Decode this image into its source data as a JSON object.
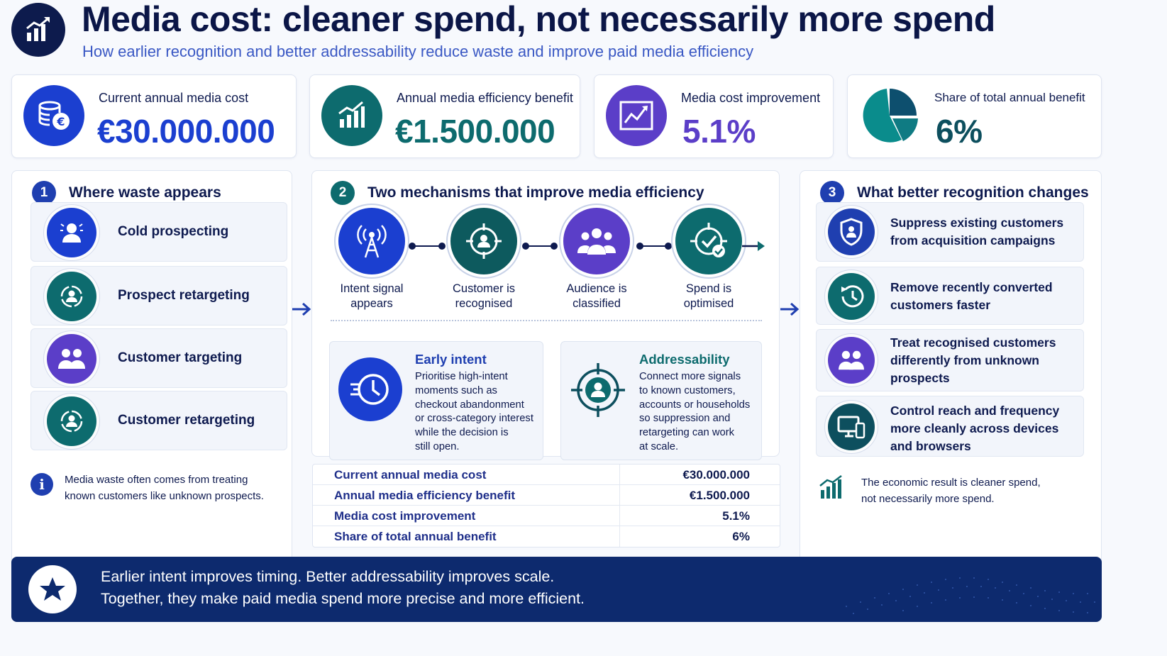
{
  "header": {
    "title": "Media cost: cleaner spend, not necessarily more spend",
    "subtitle": "How earlier recognition and better addressability reduce waste and improve paid media efficiency",
    "icon": "growth-chart-icon"
  },
  "kpis": [
    {
      "label": "Current annual media cost",
      "value": "€30.000.000",
      "icon": "coins-euro-icon",
      "color": "#1b3fd0"
    },
    {
      "label": "Annual media efficiency benefit",
      "value": "€1.500.000",
      "icon": "bar-chart-icon",
      "color": "#0d6b6e"
    },
    {
      "label": "Media cost improvement",
      "value": "5.1%",
      "icon": "line-chart-icon",
      "color": "#5b3ec8"
    },
    {
      "label": "Share of total annual benefit",
      "value": "6%",
      "icon": "pie-chart-icon",
      "color": "#0d6b6e"
    }
  ],
  "panel1": {
    "num": "1",
    "title": "Where waste appears",
    "items": [
      {
        "label": "Cold prospecting",
        "icon": "person-alert-icon"
      },
      {
        "label": "Prospect retargeting",
        "icon": "person-cycle-icon"
      },
      {
        "label": "Customer targeting",
        "icon": "group-icon"
      },
      {
        "label": "Customer retargeting",
        "icon": "person-cycle-icon"
      }
    ],
    "note": [
      "Media waste often comes from treating",
      "known customers like unknown prospects."
    ]
  },
  "panel2": {
    "num": "2",
    "title": "Two mechanisms that improve media efficiency",
    "steps": [
      {
        "label": [
          "Intent signal",
          "appears"
        ],
        "icon": "signal-tower-icon"
      },
      {
        "label": [
          "Customer is",
          "recognised"
        ],
        "icon": "target-person-icon"
      },
      {
        "label": [
          "Audience is",
          "classified"
        ],
        "icon": "group-icon"
      },
      {
        "label": [
          "Spend is",
          "optimised"
        ],
        "icon": "target-check-icon"
      }
    ],
    "mechanisms": [
      {
        "title": "Early intent",
        "icon": "fast-clock-icon",
        "body": [
          "Prioritise high-intent",
          "moments such as",
          "checkout abandonment",
          "or cross-category interest",
          "while the decision is",
          "still open."
        ]
      },
      {
        "title": "Addressability",
        "icon": "target-person-icon",
        "body": [
          "Connect more signals",
          "to known customers,",
          "accounts or households",
          "so suppression and",
          "retargeting can work",
          "at scale."
        ]
      }
    ]
  },
  "table": [
    {
      "k": "Current annual media cost",
      "v": "€30.000.000"
    },
    {
      "k": "Annual media efficiency benefit",
      "v": "€1.500.000"
    },
    {
      "k": "Media cost improvement",
      "v": "5.1%"
    },
    {
      "k": "Share of total annual benefit",
      "v": "6%"
    }
  ],
  "panel3": {
    "num": "3",
    "title": "What better recognition changes",
    "items": [
      {
        "lines": [
          "Suppress existing customers",
          "from acquisition campaigns"
        ],
        "icon": "shield-person-icon"
      },
      {
        "lines": [
          "Remove recently converted",
          "customers faster"
        ],
        "icon": "clock-arrow-icon"
      },
      {
        "lines": [
          "Treat recognised customers",
          "differently from unknown",
          "prospects"
        ],
        "icon": "group-icon"
      },
      {
        "lines": [
          "Control reach and frequency",
          "more cleanly across devices",
          "and browsers"
        ],
        "icon": "devices-icon"
      }
    ],
    "note": [
      "The economic result is cleaner spend,",
      "not necessarily more spend."
    ]
  },
  "footer": {
    "line1": "Earlier intent improves timing. Better addressability improves scale.",
    "line2": "Together, they make paid media spend more precise and more efficient.",
    "icon": "star-icon"
  }
}
